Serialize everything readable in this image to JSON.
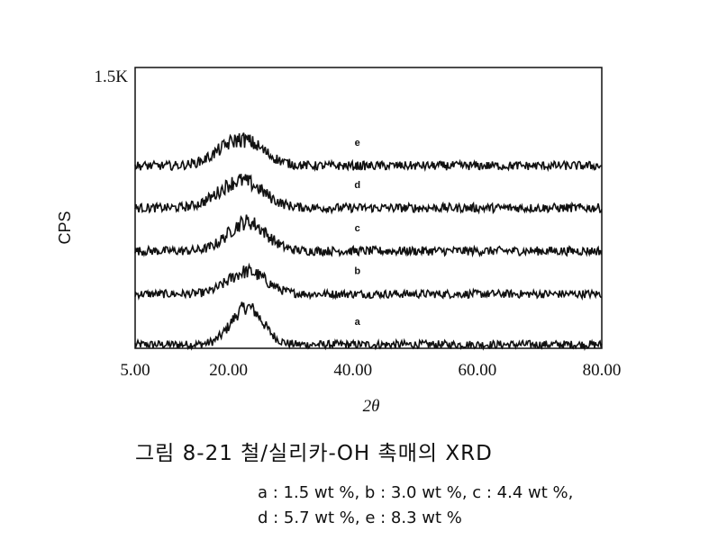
{
  "chart_data": {
    "type": "line",
    "title": "",
    "xlabel": "2θ",
    "ylabel": "CPS",
    "xlim": [
      5.0,
      80.0
    ],
    "ylim": [
      0,
      1500
    ],
    "x_ticks": [
      "5.00",
      "20.00",
      "40.00",
      "60.00",
      "80.00"
    ],
    "x_tick_values": [
      5.0,
      20.0,
      40.0,
      60.0,
      80.0
    ],
    "y_ticks": [
      "1.5K"
    ],
    "y_tick_values": [
      1500
    ],
    "grid": false,
    "series": [
      {
        "name": "a",
        "baseline": 20,
        "peak_center": 23,
        "peak_width": 2.5,
        "peak_height": 200,
        "noise": 22
      },
      {
        "name": "b",
        "baseline": 290,
        "peak_center": 23,
        "peak_width": 3.0,
        "peak_height": 120,
        "noise": 22
      },
      {
        "name": "c",
        "baseline": 520,
        "peak_center": 23,
        "peak_width": 3.0,
        "peak_height": 155,
        "noise": 24
      },
      {
        "name": "d",
        "baseline": 750,
        "peak_center": 22,
        "peak_width": 3.5,
        "peak_height": 145,
        "noise": 24
      },
      {
        "name": "e",
        "baseline": 975,
        "peak_center": 22,
        "peak_width": 3.5,
        "peak_height": 140,
        "noise": 24
      }
    ],
    "series_label_x": 40.0
  },
  "caption": "그림 8-21 철/실리카-OH 촉매의 XRD",
  "legend_line1": "a : 1.5 wt %, b : 3.0 wt %, c : 4.4 wt %,",
  "legend_line2": "d : 5.7 wt %, e : 8.3 wt %"
}
